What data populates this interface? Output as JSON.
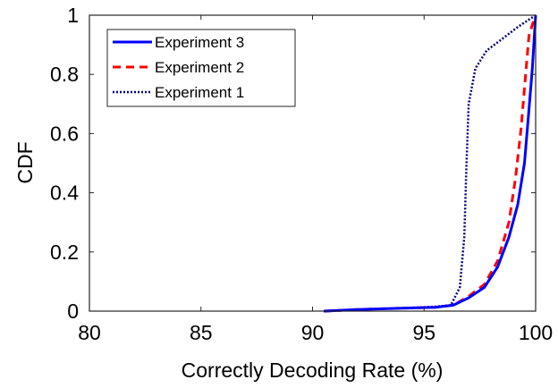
{
  "chart_data": {
    "type": "line",
    "title": "",
    "xlabel": "Correctly Decoding Rate (%)",
    "ylabel": "CDF",
    "xlim": [
      80,
      100
    ],
    "ylim": [
      0,
      1
    ],
    "xticks": [
      80,
      85,
      90,
      95,
      100
    ],
    "yticks": [
      0,
      0.2,
      0.4,
      0.6,
      0.8,
      1
    ],
    "ytick_labels": [
      "0",
      "0.2",
      "0.4",
      "0.6",
      "0.8",
      "1"
    ],
    "grid": false,
    "legend_position": "top-left",
    "series": [
      {
        "name": "Experiment 3",
        "color": "#0000ff",
        "style": "solid",
        "x": [
          90.5,
          92,
          94,
          95.5,
          96.3,
          97,
          97.7,
          98.3,
          98.8,
          99.2,
          99.5,
          99.7,
          99.85,
          100
        ],
        "y": [
          0,
          0.005,
          0.01,
          0.013,
          0.02,
          0.045,
          0.08,
          0.15,
          0.25,
          0.36,
          0.5,
          0.68,
          0.82,
          1
        ]
      },
      {
        "name": "Experiment 2",
        "color": "#ff0000",
        "style": "dashed",
        "x": [
          90.5,
          92,
          94,
          95.5,
          96.3,
          97,
          97.7,
          98.3,
          98.8,
          99.1,
          99.35,
          99.55,
          99.7,
          99.9,
          100
        ],
        "y": [
          0,
          0.005,
          0.01,
          0.013,
          0.02,
          0.05,
          0.09,
          0.17,
          0.3,
          0.45,
          0.62,
          0.8,
          0.93,
          0.98,
          1
        ]
      },
      {
        "name": "Experiment 1",
        "color": "#000080",
        "style": "dotted",
        "x": [
          90.5,
          92,
          94,
          95.5,
          96.2,
          96.6,
          96.8,
          96.9,
          97.0,
          97.3,
          97.8,
          98.5,
          99.2,
          100
        ],
        "y": [
          0,
          0.005,
          0.01,
          0.015,
          0.02,
          0.08,
          0.25,
          0.5,
          0.7,
          0.82,
          0.88,
          0.92,
          0.96,
          1
        ]
      }
    ]
  }
}
